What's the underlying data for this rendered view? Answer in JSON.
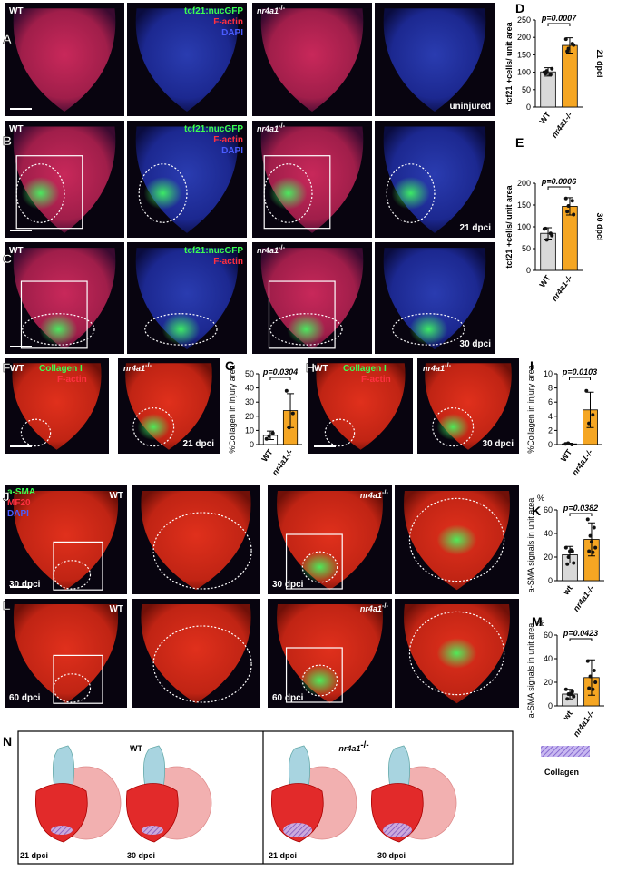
{
  "panel_letters": [
    "A",
    "B",
    "C",
    "D",
    "E",
    "F",
    "G",
    "H",
    "I",
    "J",
    "K",
    "L",
    "M",
    "N"
  ],
  "rows": {
    "A": {
      "wt": "WT",
      "reporter": "tcf21:nucGFP",
      "actin": "F-actin",
      "dapi": "DAPI",
      "mutant": "nr4a1",
      "mutant_sup": "-/-",
      "stage": "uninjured"
    },
    "B": {
      "wt": "WT",
      "reporter": "tcf21:nucGFP",
      "actin": "F-actin",
      "dapi": "DAPI",
      "mutant": "nr4a1",
      "mutant_sup": "-/-",
      "stage": "21 dpci"
    },
    "C": {
      "wt": "WT",
      "reporter": "tcf21:nucGFP",
      "actin": "F-actin",
      "mutant": "nr4a1",
      "mutant_sup": "-/-",
      "stage": "30 dpci"
    },
    "F": {
      "wt": "WT",
      "collagen": "Collagen I",
      "actin": "F-actin",
      "mutant": "nr4a1",
      "mutant_sup": "-/-",
      "stage": "21 dpci"
    },
    "H": {
      "wt": "WT",
      "collagen": "Collagen I",
      "actin": "F-actin",
      "mutant": "nr4a1",
      "mutant_sup": "-/-",
      "stage": "30 dpci"
    },
    "J": {
      "asma": "a-SMA",
      "mf20": "MF20",
      "dapi": "DAPI",
      "wt": "WT",
      "stage_wt": "30 dpci",
      "mutant": "nr4a1",
      "mutant_sup": "-/-",
      "stage_mut": "30 dpci"
    },
    "L": {
      "wt": "WT",
      "stage_wt": "60 dpci",
      "mutant": "nr4a1",
      "mutant_sup": "-/-",
      "stage_mut": "60 dpci"
    }
  },
  "chart_data": [
    {
      "type": "bar",
      "ylabel": "tcf21 +cells/ unit area",
      "annotation": "p=0.0007",
      "side_label": "21 dpci",
      "categories": [
        "WT",
        "nr4a1-/-"
      ],
      "values": [
        101,
        177
      ],
      "errors": [
        12,
        22
      ],
      "points": [
        [
          100,
          93,
          104,
          110,
          96
        ],
        [
          195,
          182,
          168,
          178,
          160
        ]
      ],
      "colors": [
        "#d9d9d9",
        "#f5a623"
      ],
      "ylim": [
        0,
        250
      ],
      "yticks": [
        0,
        50,
        100,
        150,
        200,
        250
      ]
    },
    {
      "type": "bar",
      "ylabel": "tcf21 +cells/ unit area",
      "annotation": "p=0.0006",
      "side_label": "30 dpci",
      "categories": [
        "WT",
        "nr4a1-/-"
      ],
      "values": [
        85,
        147
      ],
      "errors": [
        13,
        20
      ],
      "points": [
        [
          95,
          85,
          70,
          80,
          96
        ],
        [
          165,
          160,
          148,
          128,
          135
        ]
      ],
      "colors": [
        "#d9d9d9",
        "#f5a623"
      ],
      "ylim": [
        0,
        200
      ],
      "yticks": [
        0,
        50,
        100,
        150,
        200
      ]
    },
    {
      "type": "bar",
      "ylabel": "%Collagen in injury area",
      "annotation": "p=0.0304",
      "categories": [
        "WT",
        "nr4a1-/-"
      ],
      "values": [
        6.5,
        24
      ],
      "errors": [
        3,
        12
      ],
      "points": [
        [
          4,
          8,
          6
        ],
        [
          38,
          22,
          12
        ]
      ],
      "colors": [
        "#ffffff",
        "#f5a623"
      ],
      "ylim": [
        0,
        50
      ],
      "yticks": [
        0,
        10,
        20,
        30,
        40,
        50
      ]
    },
    {
      "type": "bar",
      "ylabel": "%Collagen in injury area",
      "annotation": "p=0.0103",
      "categories": [
        "WT",
        "nr4a1-/-"
      ],
      "values": [
        0.1,
        4.9
      ],
      "errors": [
        0.1,
        2.5
      ],
      "points": [
        [
          0.1,
          0,
          0.2
        ],
        [
          7.6,
          4.2,
          3.0
        ]
      ],
      "colors": [
        "#ffffff",
        "#f5a623"
      ],
      "ylim": [
        0,
        10
      ],
      "yticks": [
        0,
        2,
        4,
        6,
        8,
        10
      ]
    },
    {
      "type": "bar",
      "ylabel": "a-SMA signals in unit area",
      "unit": "%",
      "annotation": "p=0.0382",
      "categories": [
        "wt",
        "nr4a1-/-"
      ],
      "values": [
        22,
        35
      ],
      "errors": [
        7,
        14
      ],
      "points": [
        [
          28,
          25,
          20,
          15,
          14,
          26,
          25
        ],
        [
          52,
          45,
          38,
          28,
          25,
          24,
          33
        ]
      ],
      "colors": [
        "#d9d9d9",
        "#f5a623"
      ],
      "ylim": [
        0,
        60
      ],
      "yticks": [
        0,
        20,
        40,
        60
      ]
    },
    {
      "type": "bar",
      "ylabel": "a-SMA signals in unit area",
      "unit": "%",
      "annotation": "p=0.0423",
      "categories": [
        "wt",
        "nr4a1-/-"
      ],
      "values": [
        10,
        24
      ],
      "errors": [
        4,
        15
      ],
      "points": [
        [
          14,
          12,
          10,
          8,
          6,
          10
        ],
        [
          38,
          30,
          25,
          20,
          15,
          14
        ]
      ],
      "colors": [
        "#d9d9d9",
        "#f5a623"
      ],
      "ylim": [
        0,
        60
      ],
      "yticks": [
        0,
        20,
        40,
        60
      ]
    }
  ],
  "schematic": {
    "wt": "WT",
    "mutant": "nr4a1",
    "mutant_sup": "-/-",
    "legend": "Collagen",
    "stages": [
      "21 dpci",
      "30 dpci",
      "21 dpci",
      "30 dpci"
    ]
  }
}
